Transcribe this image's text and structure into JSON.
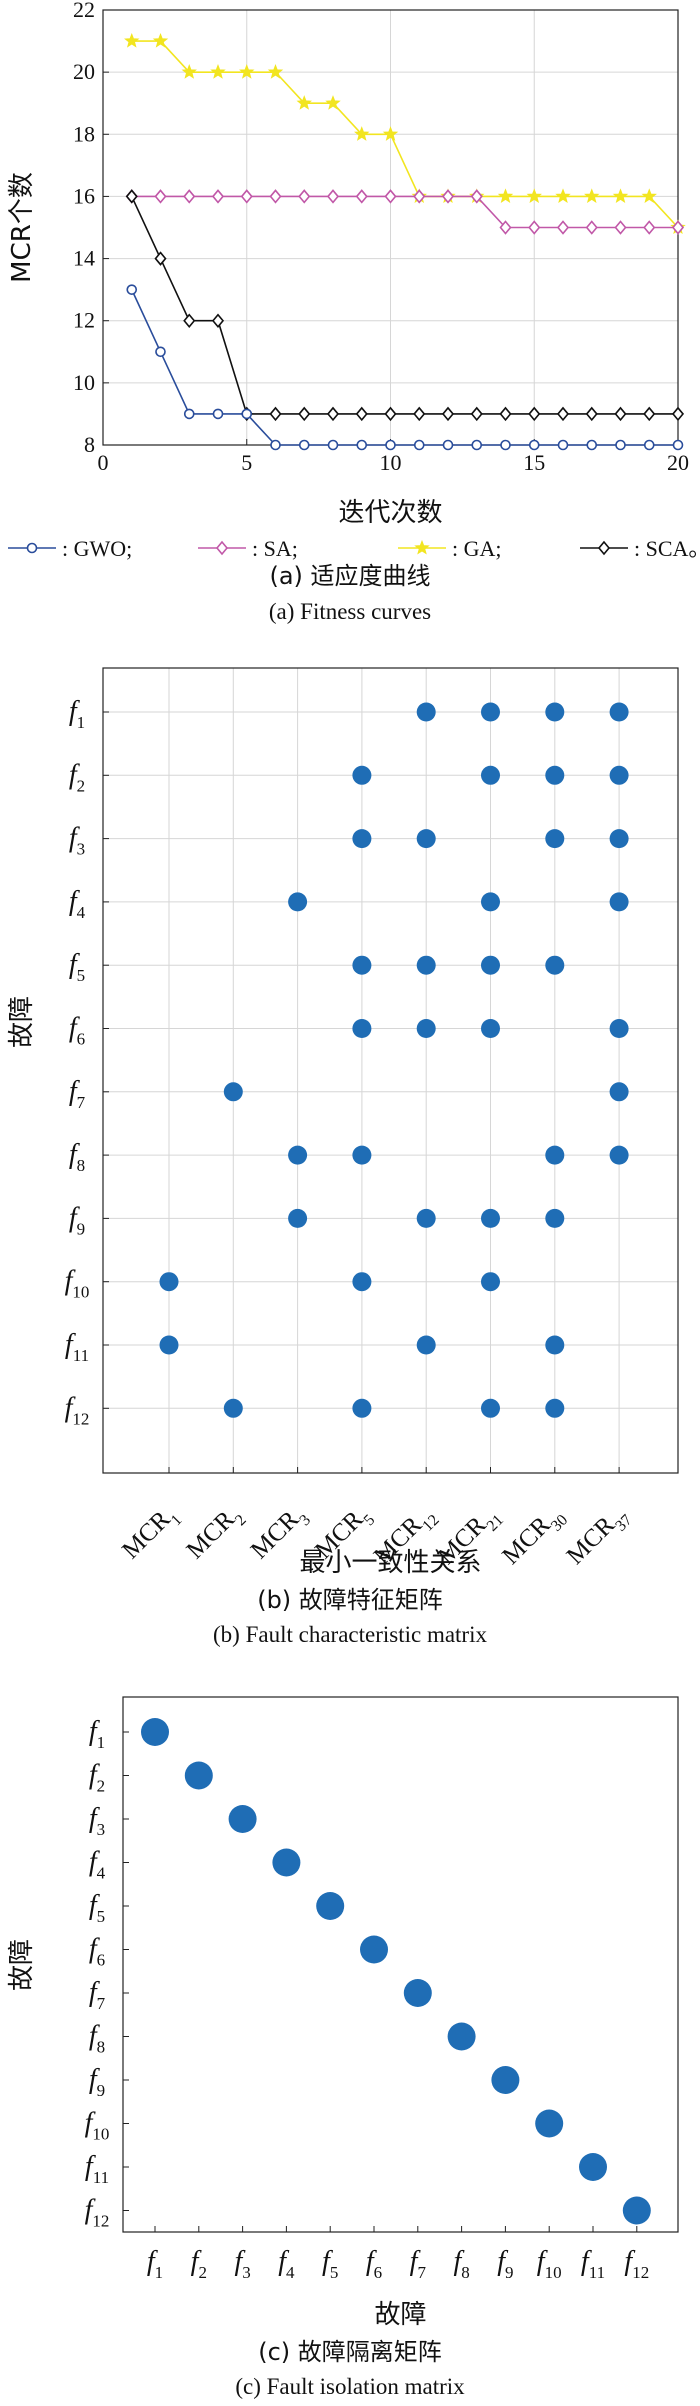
{
  "chart_data": [
    {
      "type": "line",
      "xlabel": "迭代次数",
      "ylabel": "MCR个数",
      "xlim": [
        0,
        20
      ],
      "ylim": [
        8,
        22
      ],
      "x_ticks": [
        "0",
        "5",
        "10",
        "15",
        "20"
      ],
      "y_ticks": [
        "8",
        "10",
        "12",
        "14",
        "16",
        "18",
        "20",
        "22"
      ],
      "grid": true,
      "legend_position": "bottom",
      "x": [
        1,
        2,
        3,
        4,
        5,
        6,
        7,
        8,
        9,
        10,
        11,
        12,
        13,
        14,
        15,
        16,
        17,
        18,
        19,
        20
      ],
      "series": [
        {
          "name": ": GWO;",
          "marker": "circle",
          "color": "#2a4d9b",
          "values": [
            13,
            11,
            9,
            9,
            9,
            8,
            8,
            8,
            8,
            8,
            8,
            8,
            8,
            8,
            8,
            8,
            8,
            8,
            8,
            8
          ]
        },
        {
          "name": ": SA;",
          "marker": "diamond",
          "color": "#c158a8",
          "values": [
            16,
            16,
            16,
            16,
            16,
            16,
            16,
            16,
            16,
            16,
            16,
            16,
            16,
            15,
            15,
            15,
            15,
            15,
            15,
            15
          ]
        },
        {
          "name": ": GA;",
          "marker": "star",
          "color": "#f2e520",
          "values": [
            21,
            21,
            20,
            20,
            20,
            20,
            19,
            19,
            18,
            18,
            16,
            16,
            16,
            16,
            16,
            16,
            16,
            16,
            16,
            15
          ]
        },
        {
          "name": ": SCA。",
          "marker": "diamond",
          "color": "#111111",
          "values": [
            16,
            14,
            12,
            12,
            9,
            9,
            9,
            9,
            9,
            9,
            9,
            9,
            9,
            9,
            9,
            9,
            9,
            9,
            9,
            9
          ]
        }
      ],
      "caption_cn": "(a) 适应度曲线",
      "caption_en": "(a) Fitness curves"
    },
    {
      "type": "scatter",
      "xlabel": "最小一致性关系",
      "ylabel": "故障",
      "x_categories": [
        {
          "base": "MCR",
          "sub": "1"
        },
        {
          "base": "MCR",
          "sub": "2"
        },
        {
          "base": "MCR",
          "sub": "3"
        },
        {
          "base": "MCR",
          "sub": "5"
        },
        {
          "base": "MCR",
          "sub": "12"
        },
        {
          "base": "MCR",
          "sub": "21"
        },
        {
          "base": "MCR",
          "sub": "30"
        },
        {
          "base": "MCR",
          "sub": "37"
        }
      ],
      "y_categories": [
        {
          "base": "f",
          "sub": "1"
        },
        {
          "base": "f",
          "sub": "2"
        },
        {
          "base": "f",
          "sub": "3"
        },
        {
          "base": "f",
          "sub": "4"
        },
        {
          "base": "f",
          "sub": "5"
        },
        {
          "base": "f",
          "sub": "6"
        },
        {
          "base": "f",
          "sub": "7"
        },
        {
          "base": "f",
          "sub": "8"
        },
        {
          "base": "f",
          "sub": "9"
        },
        {
          "base": "f",
          "sub": "10"
        },
        {
          "base": "f",
          "sub": "11"
        },
        {
          "base": "f",
          "sub": "12"
        }
      ],
      "color": "#1f6db5",
      "grid": true,
      "points": [
        [
          "MCR12",
          "f1"
        ],
        [
          "MCR21",
          "f1"
        ],
        [
          "MCR30",
          "f1"
        ],
        [
          "MCR37",
          "f1"
        ],
        [
          "MCR5",
          "f2"
        ],
        [
          "MCR21",
          "f2"
        ],
        [
          "MCR30",
          "f2"
        ],
        [
          "MCR37",
          "f2"
        ],
        [
          "MCR5",
          "f3"
        ],
        [
          "MCR12",
          "f3"
        ],
        [
          "MCR30",
          "f3"
        ],
        [
          "MCR37",
          "f3"
        ],
        [
          "MCR3",
          "f4"
        ],
        [
          "MCR21",
          "f4"
        ],
        [
          "MCR37",
          "f4"
        ],
        [
          "MCR5",
          "f5"
        ],
        [
          "MCR12",
          "f5"
        ],
        [
          "MCR21",
          "f5"
        ],
        [
          "MCR30",
          "f5"
        ],
        [
          "MCR5",
          "f6"
        ],
        [
          "MCR12",
          "f6"
        ],
        [
          "MCR21",
          "f6"
        ],
        [
          "MCR37",
          "f6"
        ],
        [
          "MCR2",
          "f7"
        ],
        [
          "MCR37",
          "f7"
        ],
        [
          "MCR3",
          "f8"
        ],
        [
          "MCR5",
          "f8"
        ],
        [
          "MCR30",
          "f8"
        ],
        [
          "MCR37",
          "f8"
        ],
        [
          "MCR3",
          "f9"
        ],
        [
          "MCR12",
          "f9"
        ],
        [
          "MCR21",
          "f9"
        ],
        [
          "MCR30",
          "f9"
        ],
        [
          "MCR1",
          "f10"
        ],
        [
          "MCR5",
          "f10"
        ],
        [
          "MCR21",
          "f10"
        ],
        [
          "MCR1",
          "f11"
        ],
        [
          "MCR12",
          "f11"
        ],
        [
          "MCR30",
          "f11"
        ],
        [
          "MCR2",
          "f12"
        ],
        [
          "MCR5",
          "f12"
        ],
        [
          "MCR21",
          "f12"
        ],
        [
          "MCR30",
          "f12"
        ]
      ],
      "caption_cn": "(b) 故障特征矩阵",
      "caption_en": "(b) Fault characteristic matrix"
    },
    {
      "type": "scatter",
      "xlabel": "故障",
      "ylabel": "故障",
      "x_categories": [
        {
          "base": "f",
          "sub": "1"
        },
        {
          "base": "f",
          "sub": "2"
        },
        {
          "base": "f",
          "sub": "3"
        },
        {
          "base": "f",
          "sub": "4"
        },
        {
          "base": "f",
          "sub": "5"
        },
        {
          "base": "f",
          "sub": "6"
        },
        {
          "base": "f",
          "sub": "7"
        },
        {
          "base": "f",
          "sub": "8"
        },
        {
          "base": "f",
          "sub": "9"
        },
        {
          "base": "f",
          "sub": "10"
        },
        {
          "base": "f",
          "sub": "11"
        },
        {
          "base": "f",
          "sub": "12"
        }
      ],
      "y_categories": [
        {
          "base": "f",
          "sub": "1"
        },
        {
          "base": "f",
          "sub": "2"
        },
        {
          "base": "f",
          "sub": "3"
        },
        {
          "base": "f",
          "sub": "4"
        },
        {
          "base": "f",
          "sub": "5"
        },
        {
          "base": "f",
          "sub": "6"
        },
        {
          "base": "f",
          "sub": "7"
        },
        {
          "base": "f",
          "sub": "8"
        },
        {
          "base": "f",
          "sub": "9"
        },
        {
          "base": "f",
          "sub": "10"
        },
        {
          "base": "f",
          "sub": "11"
        },
        {
          "base": "f",
          "sub": "12"
        }
      ],
      "color": "#1f6db5",
      "grid": false,
      "points": [
        [
          "f1",
          "f1"
        ],
        [
          "f2",
          "f2"
        ],
        [
          "f3",
          "f3"
        ],
        [
          "f4",
          "f4"
        ],
        [
          "f5",
          "f5"
        ],
        [
          "f6",
          "f6"
        ],
        [
          "f7",
          "f7"
        ],
        [
          "f8",
          "f8"
        ],
        [
          "f9",
          "f9"
        ],
        [
          "f10",
          "f10"
        ],
        [
          "f11",
          "f11"
        ],
        [
          "f12",
          "f12"
        ]
      ],
      "caption_cn": "(c) 故障隔离矩阵",
      "caption_en": "(c) Fault isolation matrix"
    }
  ]
}
